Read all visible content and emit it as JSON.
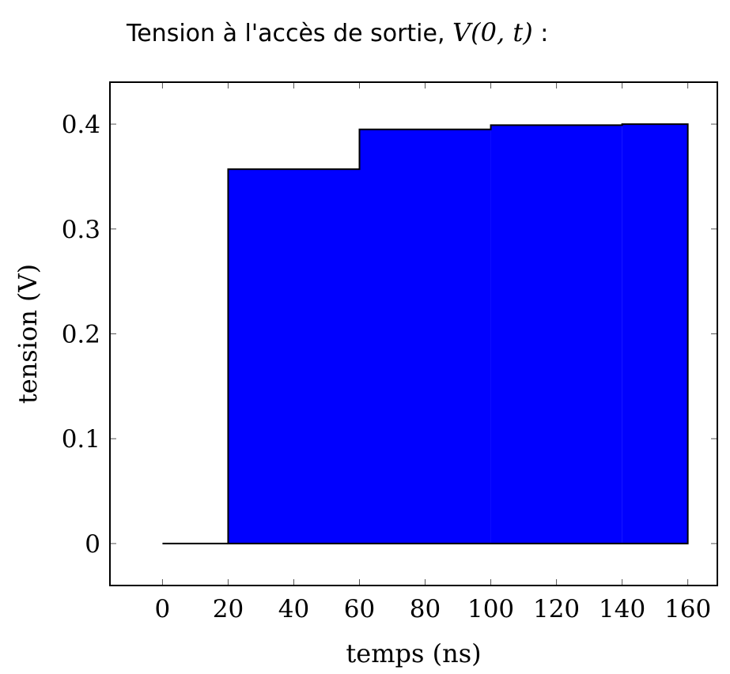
{
  "chart_data": {
    "type": "area",
    "title_prefix": "Tension à l'accès de sortie, ",
    "title_math": "V(0, t)",
    "title_suffix": " :",
    "xlabel": "temps (ns)",
    "ylabel": "tension (V)",
    "xlim": [
      -16,
      169
    ],
    "ylim": [
      -0.04,
      0.44
    ],
    "xticks": [
      0,
      20,
      40,
      60,
      80,
      100,
      120,
      140,
      160
    ],
    "yticks": [
      0,
      0.1,
      0.2,
      0.3,
      0.4
    ],
    "ytick_labels": [
      "0",
      "0.1",
      "0.2",
      "0.3",
      "0.4"
    ],
    "fill_color": "#0000ff",
    "line_color": "#000000",
    "grid": false,
    "series": [
      {
        "step": "post",
        "x": [
          0,
          20,
          60,
          100,
          140,
          160
        ],
        "y": [
          0,
          0.357,
          0.395,
          0.399,
          0.4,
          0.4
        ]
      }
    ]
  }
}
